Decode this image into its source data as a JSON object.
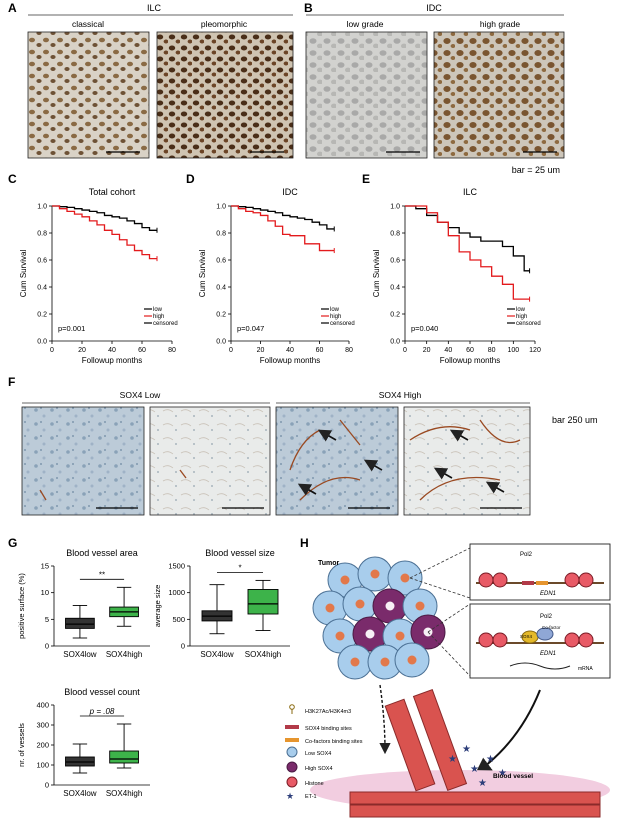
{
  "panels": {
    "A": {
      "letter": "A",
      "group": "ILC",
      "left": "classical",
      "right": "pleomorphic"
    },
    "B": {
      "letter": "B",
      "group": "IDC",
      "left": "low grade",
      "right": "high grade"
    },
    "scale_bar_AB": "bar = 25 um",
    "F": {
      "letter": "F",
      "left": "SOX4 Low",
      "right": "SOX4 High",
      "scale": "bar 250 um"
    },
    "G": {
      "letter": "G"
    },
    "H": {
      "letter": "H",
      "tumor_label": "Tumor",
      "pol2": "Pol2",
      "gene": "EDN1",
      "cofactor": "Co-factor",
      "sox4": "SOX4",
      "mrna": "mRNA",
      "vessel_label": "Blood vessel",
      "legend": [
        "H3K27Ac/H3K4m3",
        "SOX4 binding sites",
        "Co-factors binding sites",
        "Low SOX4",
        "High SOX4",
        "Histone",
        "ET-1"
      ]
    }
  },
  "chart_data": [
    {
      "id": "C",
      "type": "line",
      "letter": "C",
      "title": "Total cohort",
      "xlabel": "Followup months",
      "ylabel": "Cum Survival",
      "xlim": [
        0,
        80
      ],
      "ylim": [
        0,
        1
      ],
      "xticks": [
        "0",
        "20",
        "40",
        "60",
        "80"
      ],
      "yticks": [
        "0.0",
        "0.2",
        "0.4",
        "0.6",
        "0.8",
        "1.0"
      ],
      "pvalue": "p=0.001",
      "legend": [
        "low",
        "high",
        "censored"
      ],
      "series": [
        {
          "name": "low",
          "color": "#000000",
          "x": [
            0,
            5,
            10,
            15,
            20,
            25,
            30,
            35,
            40,
            45,
            50,
            55,
            60,
            65,
            70
          ],
          "y": [
            1.0,
            0.995,
            0.99,
            0.98,
            0.97,
            0.96,
            0.95,
            0.93,
            0.92,
            0.91,
            0.89,
            0.87,
            0.84,
            0.82,
            0.82
          ]
        },
        {
          "name": "high",
          "color": "#e31a1c",
          "x": [
            0,
            5,
            10,
            15,
            20,
            25,
            30,
            35,
            40,
            45,
            50,
            55,
            60,
            65,
            70
          ],
          "y": [
            1.0,
            0.98,
            0.96,
            0.94,
            0.92,
            0.89,
            0.86,
            0.82,
            0.79,
            0.75,
            0.71,
            0.67,
            0.64,
            0.61,
            0.61
          ]
        }
      ]
    },
    {
      "id": "D",
      "type": "line",
      "letter": "D",
      "title": "IDC",
      "xlabel": "Followup months",
      "ylabel": "Cum Survival",
      "xlim": [
        0,
        80
      ],
      "ylim": [
        0,
        1
      ],
      "xticks": [
        "0",
        "20",
        "40",
        "60",
        "80"
      ],
      "yticks": [
        "0.0",
        "0.2",
        "0.4",
        "0.6",
        "0.8",
        "1.0"
      ],
      "pvalue": "p=0.047",
      "legend": [
        "low",
        "high",
        "censored"
      ],
      "series": [
        {
          "name": "low",
          "color": "#000000",
          "x": [
            0,
            5,
            10,
            15,
            20,
            25,
            30,
            35,
            40,
            45,
            50,
            55,
            60,
            65,
            70
          ],
          "y": [
            1.0,
            0.995,
            0.99,
            0.98,
            0.97,
            0.96,
            0.95,
            0.93,
            0.92,
            0.91,
            0.9,
            0.88,
            0.86,
            0.83,
            0.83
          ]
        },
        {
          "name": "high",
          "color": "#e31a1c",
          "x": [
            0,
            5,
            10,
            15,
            20,
            25,
            30,
            35,
            40,
            45,
            50,
            55,
            60,
            65,
            70
          ],
          "y": [
            1.0,
            0.98,
            0.96,
            0.95,
            0.93,
            0.89,
            0.85,
            0.79,
            0.78,
            0.78,
            0.72,
            0.72,
            0.67,
            0.67,
            0.67
          ]
        }
      ]
    },
    {
      "id": "E",
      "type": "line",
      "letter": "E",
      "title": "ILC",
      "xlabel": "Followup months",
      "ylabel": "Cum Survival",
      "xlim": [
        0,
        120
      ],
      "ylim": [
        0,
        1
      ],
      "xticks": [
        "0",
        "20",
        "40",
        "60",
        "80",
        "100",
        "120"
      ],
      "yticks": [
        "0.0",
        "0.2",
        "0.4",
        "0.6",
        "0.8",
        "1.0"
      ],
      "pvalue": "p=0.040",
      "legend": [
        "low",
        "high",
        "censored"
      ],
      "series": [
        {
          "name": "low",
          "color": "#000000",
          "x": [
            0,
            10,
            20,
            30,
            40,
            50,
            60,
            70,
            80,
            90,
            100,
            110,
            115
          ],
          "y": [
            1.0,
            0.98,
            0.93,
            0.88,
            0.84,
            0.8,
            0.77,
            0.74,
            0.74,
            0.7,
            0.63,
            0.52,
            0.52
          ]
        },
        {
          "name": "high",
          "color": "#e31a1c",
          "x": [
            0,
            10,
            20,
            30,
            40,
            50,
            60,
            70,
            80,
            90,
            100,
            110,
            115
          ],
          "y": [
            1.0,
            1.0,
            0.95,
            0.88,
            0.78,
            0.66,
            0.6,
            0.55,
            0.48,
            0.42,
            0.31,
            0.31,
            0.31
          ]
        }
      ]
    },
    {
      "id": "G1",
      "type": "box",
      "title": "Blood vessel area",
      "ylabel": "positive surface (%)",
      "categories": [
        "SOX4low",
        "SOX4high"
      ],
      "ylim": [
        0,
        15
      ],
      "yticks": [
        "0",
        "5",
        "10",
        "15"
      ],
      "significance": "**",
      "boxes": [
        {
          "name": "SOX4low",
          "color": "#333333",
          "min": 1.5,
          "q1": 3.3,
          "median": 4.1,
          "q3": 5.2,
          "max": 7.6
        },
        {
          "name": "SOX4high",
          "color": "#3db34a",
          "min": 3.7,
          "q1": 5.5,
          "median": 6.4,
          "q3": 7.3,
          "max": 11
        }
      ]
    },
    {
      "id": "G2",
      "type": "box",
      "title": "Blood vessel size",
      "ylabel": "average size",
      "categories": [
        "SOX4low",
        "SOX4high"
      ],
      "ylim": [
        0,
        1500
      ],
      "yticks": [
        "0",
        "500",
        "1000",
        "1500"
      ],
      "significance": "*",
      "boxes": [
        {
          "name": "SOX4low",
          "color": "#333333",
          "min": 230,
          "q1": 470,
          "median": 560,
          "q3": 660,
          "max": 1150
        },
        {
          "name": "SOX4high",
          "color": "#3db34a",
          "min": 290,
          "q1": 600,
          "median": 790,
          "q3": 1060,
          "max": 1230
        }
      ]
    },
    {
      "id": "G3",
      "type": "box",
      "title": "Blood vessel count",
      "ylabel": "nr. of vessels",
      "categories": [
        "SOX4low",
        "SOX4high"
      ],
      "ylim": [
        0,
        400
      ],
      "yticks": [
        "0",
        "100",
        "200",
        "300",
        "400"
      ],
      "significance": "p = .08",
      "boxes": [
        {
          "name": "SOX4low",
          "color": "#333333",
          "min": 60,
          "q1": 95,
          "median": 115,
          "q3": 140,
          "max": 205
        },
        {
          "name": "SOX4high",
          "color": "#3db34a",
          "min": 85,
          "q1": 110,
          "median": 130,
          "q3": 170,
          "max": 305
        }
      ]
    }
  ]
}
